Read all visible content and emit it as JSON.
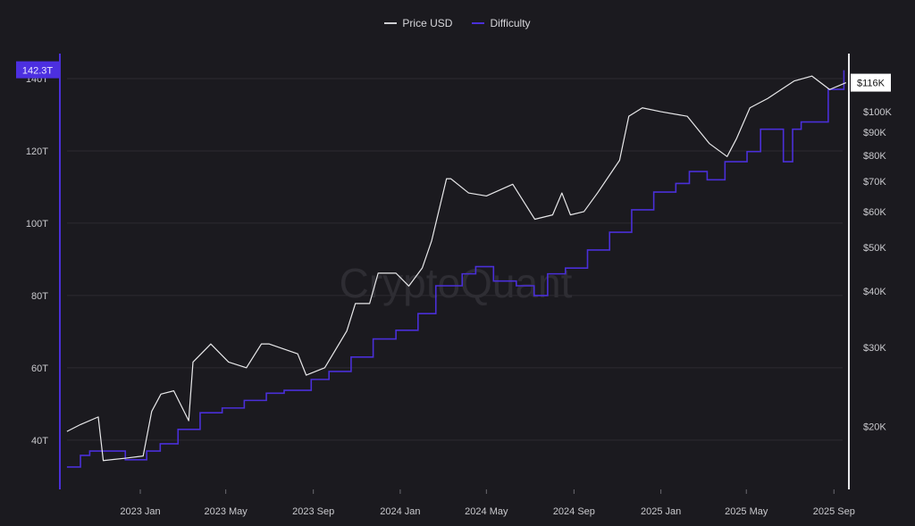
{
  "chart_data": {
    "type": "line",
    "title": "",
    "legend_position": "top-center",
    "watermark": "CryptoQuant",
    "grid": true,
    "colors": {
      "price": "#e8e8ea",
      "difficulty": "#4a2fd8",
      "background": "#1b1a1f",
      "grid": "#2c2b31"
    },
    "x_axis": {
      "type": "date",
      "ticks": [
        "2023 Jan",
        "2023 May",
        "2023 Sep",
        "2024 Jan",
        "2024 May",
        "2024 Sep",
        "2025 Jan",
        "2025 May",
        "2025 Sep"
      ],
      "tick_dates": [
        "2023-01-01",
        "2023-05-01",
        "2023-09-01",
        "2024-01-01",
        "2024-05-01",
        "2024-09-01",
        "2025-01-01",
        "2025-05-01",
        "2025-09-01"
      ],
      "range": [
        "2022-09-20",
        "2025-09-18"
      ]
    },
    "y_left": {
      "label": "",
      "ticks": [
        "40T",
        "60T",
        "80T",
        "100T",
        "120T",
        "140T"
      ],
      "tick_values": [
        40,
        60,
        80,
        100,
        120,
        140
      ],
      "range": [
        26.4,
        146.9
      ],
      "scale": "linear",
      "current_label": "142.3T"
    },
    "y_right": {
      "label": "",
      "ticks": [
        "$20K",
        "$30K",
        "$40K",
        "$50K",
        "$60K",
        "$70K",
        "$80K",
        "$90K",
        "$100K"
      ],
      "tick_values": [
        20000,
        30000,
        40000,
        50000,
        60000,
        70000,
        80000,
        90000,
        100000
      ],
      "range": [
        14500,
        134600
      ],
      "scale": "log",
      "current_label": "$116K"
    },
    "series": [
      {
        "name": "Price USD",
        "axis": "right",
        "style": "line",
        "points": [
          [
            "2022-09-20",
            19500
          ],
          [
            "2022-10-09",
            20200
          ],
          [
            "2022-11-03",
            21000
          ],
          [
            "2022-11-10",
            16800
          ],
          [
            "2022-12-10",
            17000
          ],
          [
            "2023-01-05",
            17200
          ],
          [
            "2023-01-17",
            21600
          ],
          [
            "2023-01-30",
            23600
          ],
          [
            "2023-02-17",
            24000
          ],
          [
            "2023-03-10",
            20600
          ],
          [
            "2023-03-16",
            27800
          ],
          [
            "2023-04-10",
            30500
          ],
          [
            "2023-05-05",
            27800
          ],
          [
            "2023-05-30",
            27000
          ],
          [
            "2023-06-20",
            30500
          ],
          [
            "2023-07-01",
            30500
          ],
          [
            "2023-08-10",
            29000
          ],
          [
            "2023-08-22",
            26000
          ],
          [
            "2023-09-17",
            27000
          ],
          [
            "2023-10-18",
            32600
          ],
          [
            "2023-10-30",
            37500
          ],
          [
            "2023-11-19",
            37500
          ],
          [
            "2023-12-01",
            43800
          ],
          [
            "2023-12-26",
            43800
          ],
          [
            "2024-01-13",
            41000
          ],
          [
            "2024-02-01",
            45000
          ],
          [
            "2024-02-14",
            51600
          ],
          [
            "2024-03-06",
            71000
          ],
          [
            "2024-03-12",
            71000
          ],
          [
            "2024-04-06",
            66000
          ],
          [
            "2024-05-01",
            65000
          ],
          [
            "2024-06-07",
            69000
          ],
          [
            "2024-07-08",
            57700
          ],
          [
            "2024-08-02",
            59000
          ],
          [
            "2024-08-15",
            66000
          ],
          [
            "2024-08-27",
            59000
          ],
          [
            "2024-09-15",
            60000
          ],
          [
            "2024-10-04",
            66000
          ],
          [
            "2024-11-04",
            78000
          ],
          [
            "2024-11-17",
            97700
          ],
          [
            "2024-12-06",
            102000
          ],
          [
            "2025-01-01",
            100000
          ],
          [
            "2025-02-07",
            97700
          ],
          [
            "2025-03-10",
            85000
          ],
          [
            "2025-04-04",
            79500
          ],
          [
            "2025-04-17",
            87000
          ],
          [
            "2025-05-06",
            102000
          ],
          [
            "2025-05-31",
            107000
          ],
          [
            "2025-07-07",
            117000
          ],
          [
            "2025-08-01",
            120000
          ],
          [
            "2025-08-26",
            112000
          ],
          [
            "2025-09-18",
            116000
          ]
        ]
      },
      {
        "name": "Difficulty",
        "axis": "left",
        "style": "step",
        "points": [
          [
            "2022-09-20",
            32.6
          ],
          [
            "2022-10-09",
            35.8
          ],
          [
            "2022-10-22",
            37
          ],
          [
            "2022-12-11",
            34.6
          ],
          [
            "2023-01-10",
            37
          ],
          [
            "2023-01-29",
            39
          ],
          [
            "2023-02-23",
            43
          ],
          [
            "2023-03-26",
            47.6
          ],
          [
            "2023-04-26",
            48.9
          ],
          [
            "2023-05-27",
            51
          ],
          [
            "2023-06-27",
            53
          ],
          [
            "2023-07-22",
            53.8
          ],
          [
            "2023-08-29",
            56.8
          ],
          [
            "2023-09-23",
            59
          ],
          [
            "2023-10-24",
            63
          ],
          [
            "2023-11-24",
            68
          ],
          [
            "2023-12-26",
            70.4
          ],
          [
            "2024-01-26",
            75
          ],
          [
            "2024-02-20",
            82.7
          ],
          [
            "2024-03-28",
            86
          ],
          [
            "2024-04-16",
            88
          ],
          [
            "2024-05-11",
            84
          ],
          [
            "2024-06-12",
            82.7
          ],
          [
            "2024-07-07",
            80
          ],
          [
            "2024-07-26",
            86
          ],
          [
            "2024-08-20",
            87.6
          ],
          [
            "2024-09-20",
            92.6
          ],
          [
            "2024-10-21",
            97.5
          ],
          [
            "2024-11-21",
            103.7
          ],
          [
            "2024-12-22",
            108.6
          ],
          [
            "2025-01-22",
            111
          ],
          [
            "2025-02-10",
            114.3
          ],
          [
            "2025-03-07",
            112
          ],
          [
            "2025-04-01",
            117
          ],
          [
            "2025-05-02",
            119.8
          ],
          [
            "2025-05-21",
            126
          ],
          [
            "2025-06-22",
            117
          ],
          [
            "2025-07-05",
            126
          ],
          [
            "2025-07-17",
            128
          ],
          [
            "2025-08-24",
            137
          ],
          [
            "2025-09-15",
            142.3
          ]
        ]
      }
    ]
  }
}
